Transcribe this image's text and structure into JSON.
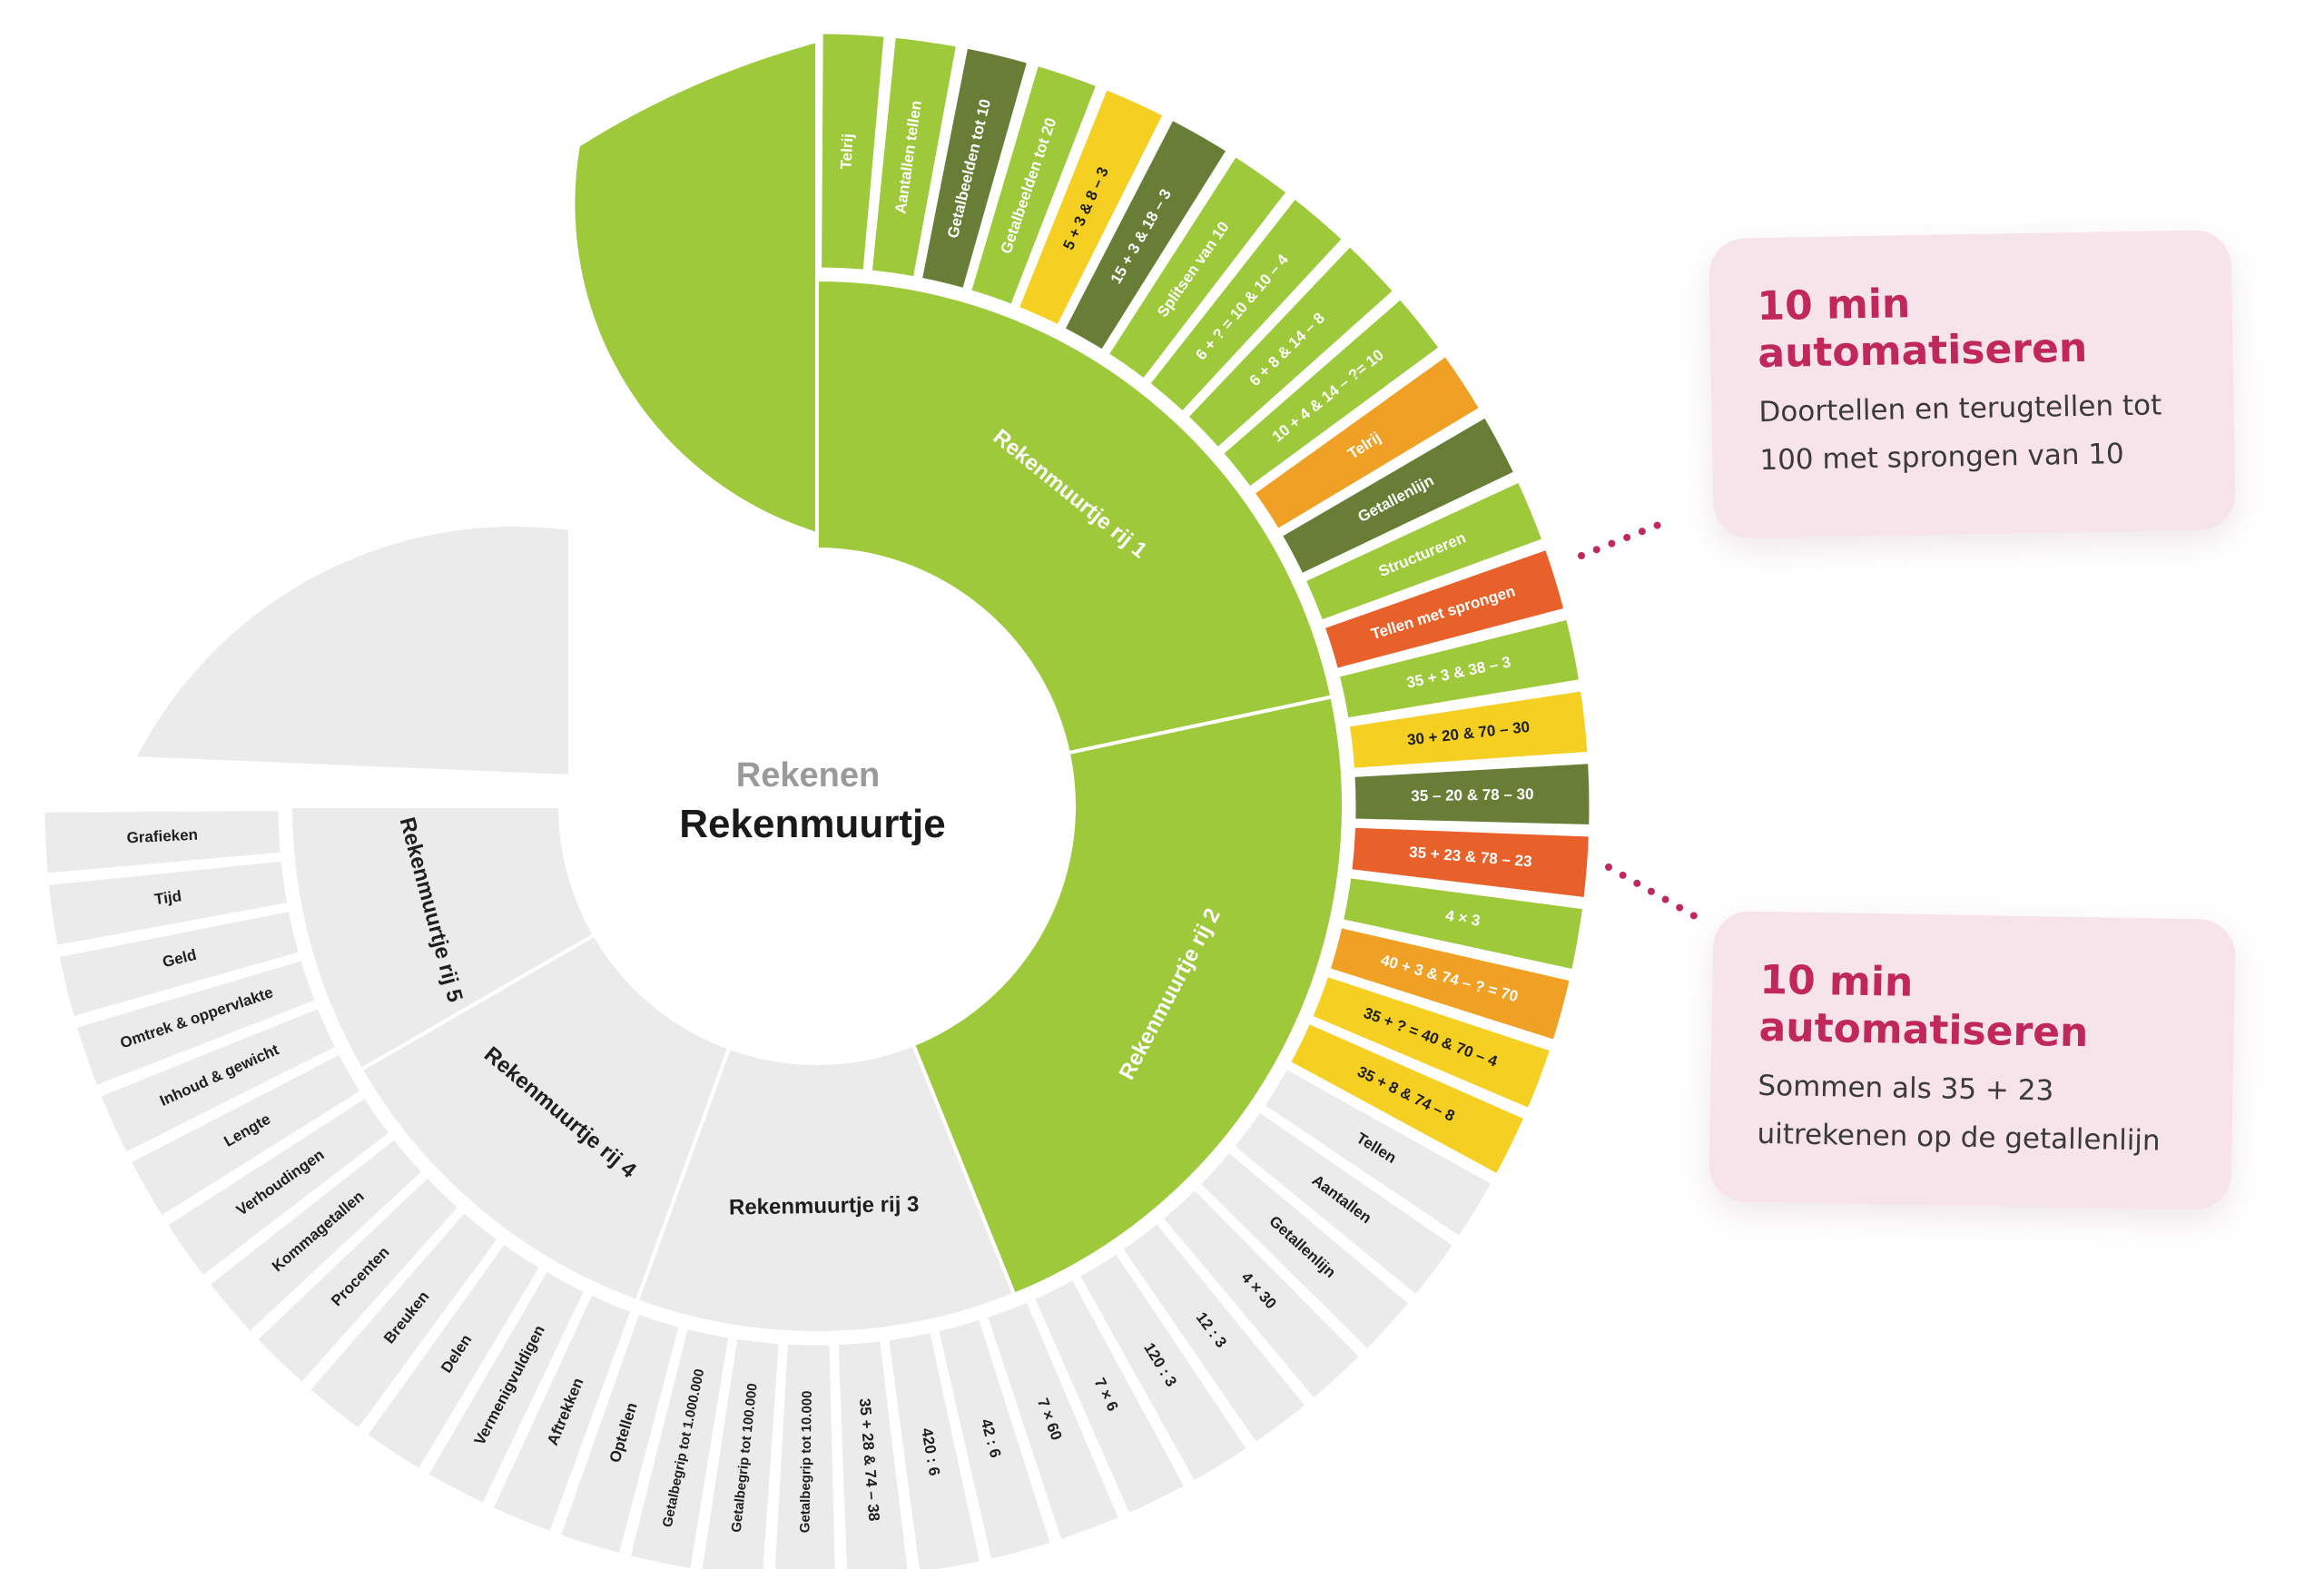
{
  "center": {
    "subject": "Rekenen",
    "title": "Rekenmuurtje"
  },
  "colors": {
    "green": "#9dc93b",
    "dark_green": "#687e36",
    "yellow": "#f5cf22",
    "orange": "#f0a125",
    "red_orange": "#e8602a",
    "grey": "#ebebeb",
    "callout": "#c0285a"
  },
  "inner_ring": [
    {
      "label": "Rekenmuurtje rij 1",
      "color": "green"
    },
    {
      "label": "Rekenmuurtje rij 2",
      "color": "green"
    },
    {
      "label": "Rekenmuurtje rij 3",
      "color": "grey"
    },
    {
      "label": "Rekenmuurtje rij 4",
      "color": "grey"
    },
    {
      "label": "Rekenmuurtje rij 5",
      "color": "grey"
    }
  ],
  "outer_ring": [
    {
      "label": "Telrij",
      "color": "green"
    },
    {
      "label": "Aantallen tellen",
      "color": "green"
    },
    {
      "label": "Getalbeelden tot 10",
      "color": "dark_green"
    },
    {
      "label": "Getalbeelden tot 20",
      "color": "green"
    },
    {
      "label": "5 + 3 & 8 – 3",
      "color": "yellow"
    },
    {
      "label": "15 + 3 & 18 – 3",
      "color": "dark_green"
    },
    {
      "label": "Splitsen van 10",
      "color": "green"
    },
    {
      "label": "6 + ? = 10 & 10 – 4",
      "color": "green"
    },
    {
      "label": "6 + 8 & 14 – 8",
      "color": "green"
    },
    {
      "label": "10 + 4 & 14 – ?= 10",
      "color": "green"
    },
    {
      "label": "Telrij",
      "color": "orange"
    },
    {
      "label": "Getallenlijn",
      "color": "dark_green"
    },
    {
      "label": "Structureren",
      "color": "green"
    },
    {
      "label": "Tellen met sprongen",
      "color": "red_orange"
    },
    {
      "label": "35 + 3 & 38 – 3",
      "color": "green"
    },
    {
      "label": "30 + 20 & 70 – 30",
      "color": "yellow"
    },
    {
      "label": "35 – 20 & 78 – 30",
      "color": "dark_green"
    },
    {
      "label": "35 + 23 & 78 – 23",
      "color": "red_orange"
    },
    {
      "label": "4 × 3",
      "color": "green"
    },
    {
      "label": "40 + 3 & 74 – ? = 70",
      "color": "orange"
    },
    {
      "label": "35 + ? = 40 & 70 – 4",
      "color": "yellow"
    },
    {
      "label": "35 + 8 & 74 – 8",
      "color": "yellow"
    },
    {
      "label": "Tellen",
      "color": "grey"
    },
    {
      "label": "Aantallen",
      "color": "grey"
    },
    {
      "label": "Getallenlijn",
      "color": "grey"
    },
    {
      "label": "4 × 30",
      "color": "grey"
    },
    {
      "label": "12 : 3",
      "color": "grey"
    },
    {
      "label": "120 : 3",
      "color": "grey"
    },
    {
      "label": "7 × 6",
      "color": "grey"
    },
    {
      "label": "7 × 60",
      "color": "grey"
    },
    {
      "label": "42 : 6",
      "color": "grey"
    },
    {
      "label": "420 : 6",
      "color": "grey"
    },
    {
      "label": "35 + 28 & 74 – 38",
      "color": "grey"
    },
    {
      "label": "Getalbegrip tot 10.000",
      "color": "grey"
    },
    {
      "label": "Getalbegrip tot 100.000",
      "color": "grey"
    },
    {
      "label": "Getalbegrip tot 1.000.000",
      "color": "grey"
    },
    {
      "label": "Optellen",
      "color": "grey"
    },
    {
      "label": "Aftrekken",
      "color": "grey"
    },
    {
      "label": "Vermenigvuldigen",
      "color": "grey"
    },
    {
      "label": "Delen",
      "color": "grey"
    },
    {
      "label": "Breuken",
      "color": "grey"
    },
    {
      "label": "Procenten",
      "color": "grey"
    },
    {
      "label": "Kommagetallen",
      "color": "grey"
    },
    {
      "label": "Verhoudingen",
      "color": "grey"
    },
    {
      "label": "Lengte",
      "color": "grey"
    },
    {
      "label": "Inhoud & gewicht",
      "color": "grey"
    },
    {
      "label": "Omtrek & oppervlakte",
      "color": "grey"
    },
    {
      "label": "Geld",
      "color": "grey"
    },
    {
      "label": "Tijd",
      "color": "grey"
    },
    {
      "label": "Grafieken",
      "color": "grey"
    }
  ],
  "callouts": [
    {
      "title": "10 min automatiseren",
      "text": "Doortellen en terugtellen tot 100 met sprongen van 10"
    },
    {
      "title": "10 min automatiseren",
      "text": "Sommen als 35 + 23 uitrekenen op de getallenlijn"
    }
  ]
}
